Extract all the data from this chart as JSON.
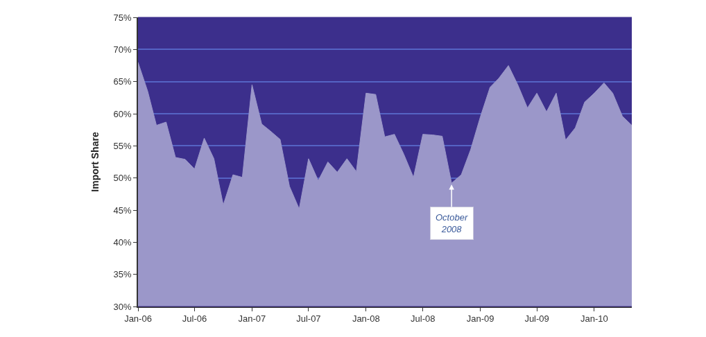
{
  "chart_data": {
    "type": "area",
    "ylabel": "Import Share",
    "x": [
      "2006-01",
      "2006-02",
      "2006-03",
      "2006-04",
      "2006-05",
      "2006-06",
      "2006-07",
      "2006-08",
      "2006-09",
      "2006-10",
      "2006-11",
      "2006-12",
      "2007-01",
      "2007-02",
      "2007-03",
      "2007-04",
      "2007-05",
      "2007-06",
      "2007-07",
      "2007-08",
      "2007-09",
      "2007-10",
      "2007-11",
      "2007-12",
      "2008-01",
      "2008-02",
      "2008-03",
      "2008-04",
      "2008-05",
      "2008-06",
      "2008-07",
      "2008-08",
      "2008-09",
      "2008-10",
      "2008-11",
      "2008-12",
      "2009-01",
      "2009-02",
      "2009-03",
      "2009-04",
      "2009-05",
      "2009-06",
      "2009-07",
      "2009-08",
      "2009-09",
      "2009-10",
      "2009-11",
      "2009-12",
      "2010-01",
      "2010-02",
      "2010-03",
      "2010-04",
      "2010-05"
    ],
    "series": [
      {
        "color": "#9b97c9",
        "values": [
          68.0,
          63.5,
          58.2,
          58.7,
          53.2,
          52.9,
          51.4,
          56.2,
          53.0,
          45.8,
          50.5,
          50.1,
          64.5,
          58.4,
          57.3,
          56.0,
          48.7,
          45.2,
          53.0,
          49.6,
          52.5,
          50.9,
          53.0,
          51.0,
          63.2,
          63.0,
          56.4,
          56.8,
          53.7,
          50.1,
          56.8,
          56.7,
          56.5,
          49.2,
          50.5,
          54.4,
          59.5,
          64.1,
          65.5,
          67.5,
          64.5,
          60.9,
          63.2,
          60.3,
          63.2,
          55.9,
          57.8,
          61.8,
          63.2,
          64.8,
          63.2,
          59.6,
          58.2
        ]
      }
    ],
    "xlim": [
      "2006-01",
      "2010-05"
    ],
    "xticks": [
      {
        "value": "2006-01",
        "label": "Jan-06"
      },
      {
        "value": "2006-07",
        "label": "Jul-06"
      },
      {
        "value": "2007-01",
        "label": "Jan-07"
      },
      {
        "value": "2007-07",
        "label": "Jul-07"
      },
      {
        "value": "2008-01",
        "label": "Jan-08"
      },
      {
        "value": "2008-07",
        "label": "Jul-08"
      },
      {
        "value": "2009-01",
        "label": "Jan-09"
      },
      {
        "value": "2009-07",
        "label": "Jul-09"
      },
      {
        "value": "2010-01",
        "label": "Jan-10"
      }
    ],
    "ylim": [
      30,
      75
    ],
    "yticks": [
      {
        "value": 30,
        "label": "30%"
      },
      {
        "value": 35,
        "label": "35%"
      },
      {
        "value": 40,
        "label": "40%"
      },
      {
        "value": 45,
        "label": "45%"
      },
      {
        "value": 50,
        "label": "50%"
      },
      {
        "value": 55,
        "label": "55%"
      },
      {
        "value": 60,
        "label": "60%"
      },
      {
        "value": 65,
        "label": "65%"
      },
      {
        "value": 70,
        "label": "70%"
      },
      {
        "value": 75,
        "label": "75%"
      }
    ],
    "bands": [
      {
        "axis": "y",
        "from": 30,
        "to": 75,
        "color": "#3c2f8c"
      }
    ],
    "grid": "y",
    "annotations": [
      {
        "text": "October\n2008",
        "x": "2008-10",
        "y": 49.2
      }
    ]
  }
}
